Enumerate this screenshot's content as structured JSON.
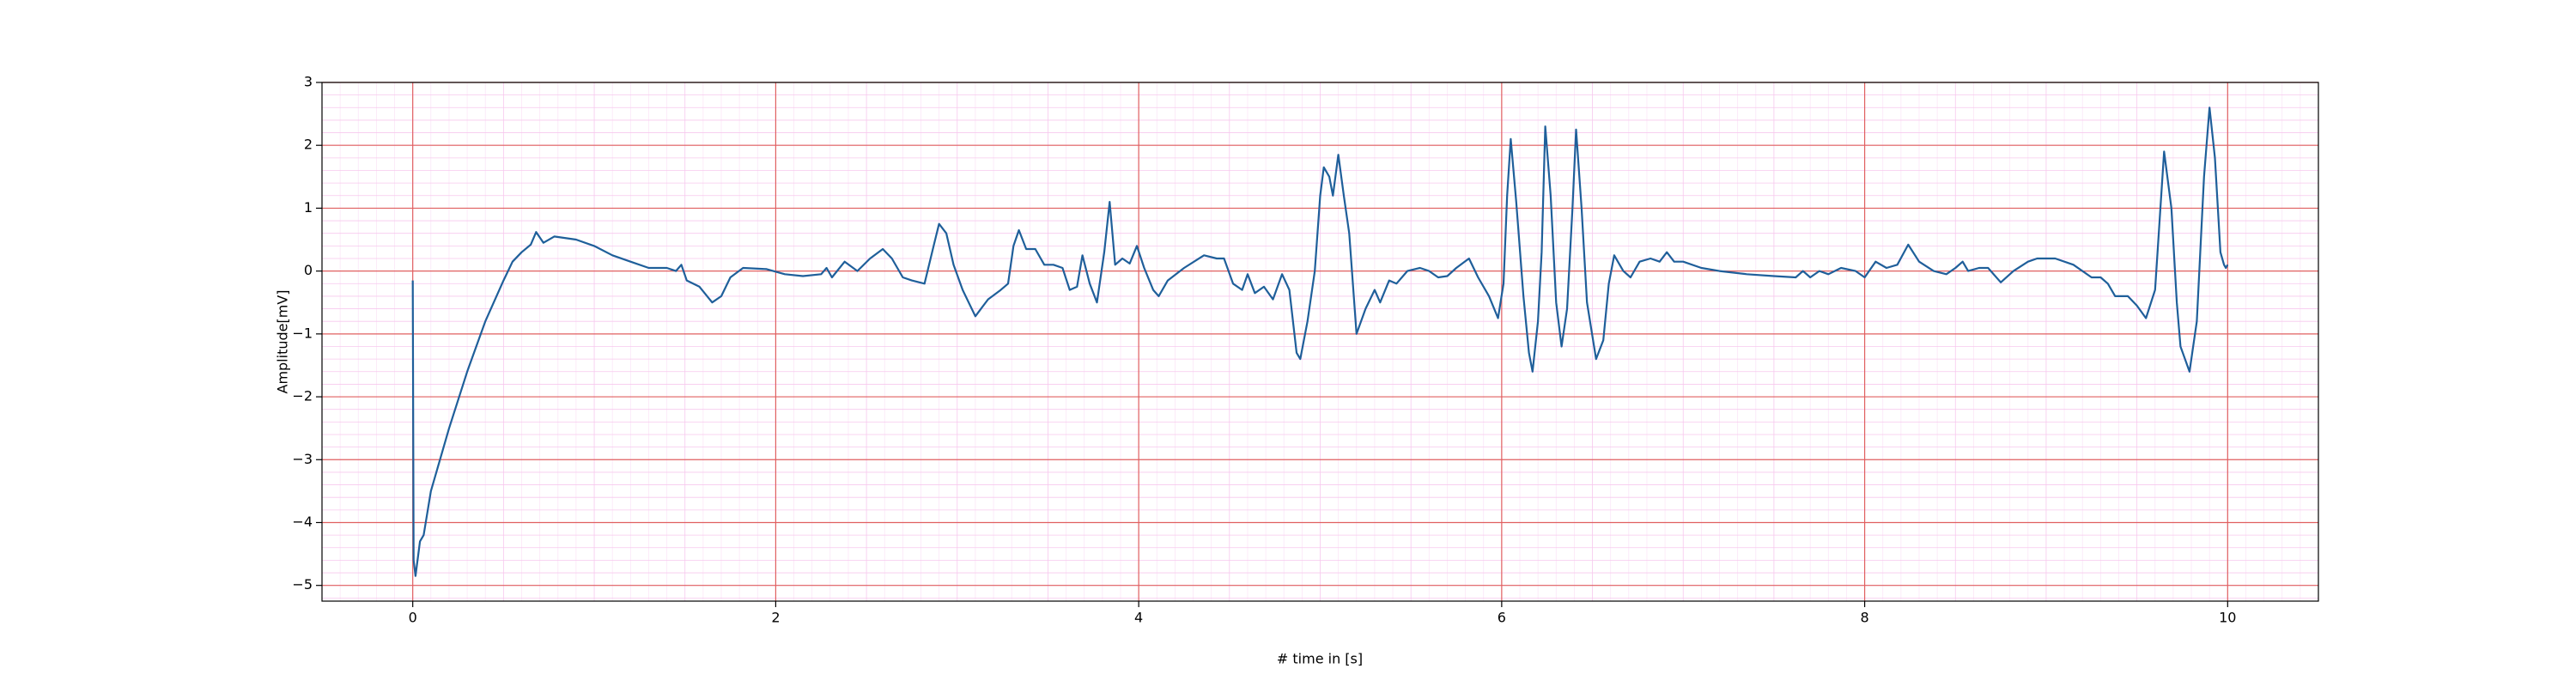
{
  "chart_data": {
    "type": "line",
    "xlabel": "# time in [s]",
    "ylabel": "Amplitude[mV]",
    "xlim": [
      -0.5,
      10.5
    ],
    "ylim": [
      -5.25,
      3.0
    ],
    "xticks": [
      0,
      2,
      4,
      6,
      8,
      10
    ],
    "yticks": [
      {
        "value": -5,
        "label": "−5"
      },
      {
        "value": -4,
        "label": "−4"
      },
      {
        "value": -3,
        "label": "−3"
      },
      {
        "value": -2,
        "label": "−2"
      },
      {
        "value": -1,
        "label": "−1"
      },
      0,
      1,
      2,
      3
    ],
    "grid": true,
    "grid_color": "#e06060",
    "minor_grid_color": "#f7c8ee",
    "series": [
      {
        "color": "#1f5f9a",
        "x": [
          0,
          0.005,
          0.015,
          0.04,
          0.06,
          0.1,
          0.2,
          0.3,
          0.4,
          0.5,
          0.55,
          0.6,
          0.65,
          0.68,
          0.72,
          0.78,
          0.9,
          1.0,
          1.1,
          1.2,
          1.3,
          1.4,
          1.45,
          1.48,
          1.51,
          1.58,
          1.65,
          1.7,
          1.75,
          1.82,
          1.95,
          2.05,
          2.15,
          2.25,
          2.28,
          2.31,
          2.38,
          2.45,
          2.52,
          2.59,
          2.64,
          2.7,
          2.75,
          2.82,
          2.87,
          2.9,
          2.94,
          2.98,
          3.03,
          3.1,
          3.17,
          3.24,
          3.28,
          3.31,
          3.34,
          3.38,
          3.43,
          3.48,
          3.53,
          3.58,
          3.62,
          3.66,
          3.69,
          3.73,
          3.77,
          3.81,
          3.84,
          3.87,
          3.91,
          3.95,
          3.99,
          4.03,
          4.08,
          4.11,
          4.16,
          4.25,
          4.36,
          4.43,
          4.47,
          4.52,
          4.57,
          4.6,
          4.64,
          4.69,
          4.74,
          4.79,
          4.83,
          4.87,
          4.89,
          4.93,
          4.97,
          5.0,
          5.02,
          5.05,
          5.07,
          5.1,
          5.13,
          5.16,
          5.2,
          5.25,
          5.3,
          5.33,
          5.38,
          5.42,
          5.48,
          5.55,
          5.6,
          5.65,
          5.7,
          5.75,
          5.82,
          5.87,
          5.93,
          5.98,
          6.01,
          6.03,
          6.05,
          6.08,
          6.12,
          6.15,
          6.17,
          6.2,
          6.22,
          6.24,
          6.27,
          6.3,
          6.33,
          6.36,
          6.39,
          6.41,
          6.44,
          6.47,
          6.52,
          6.56,
          6.59,
          6.62,
          6.67,
          6.71,
          6.76,
          6.82,
          6.87,
          6.91,
          6.95,
          7.0,
          7.1,
          7.2,
          7.35,
          7.5,
          7.62,
          7.66,
          7.7,
          7.75,
          7.8,
          7.87,
          7.95,
          8.0,
          8.06,
          8.12,
          8.18,
          8.24,
          8.3,
          8.38,
          8.45,
          8.5,
          8.54,
          8.57,
          8.63,
          8.68,
          8.75,
          8.82,
          8.9,
          8.95,
          9.05,
          9.15,
          9.25,
          9.3,
          9.34,
          9.38,
          9.45,
          9.5,
          9.55,
          9.6,
          9.65,
          9.69,
          9.72,
          9.74,
          9.79,
          9.83,
          9.87,
          9.9,
          9.93,
          9.96,
          9.98,
          9.99,
          10.0
        ],
        "values": [
          -0.15,
          -4.6,
          -4.85,
          -4.3,
          -4.2,
          -3.5,
          -2.5,
          -1.6,
          -0.8,
          -0.15,
          0.15,
          0.3,
          0.42,
          0.62,
          0.45,
          0.55,
          0.5,
          0.4,
          0.25,
          0.15,
          0.05,
          0.05,
          0.0,
          0.1,
          -0.15,
          -0.25,
          -0.5,
          -0.4,
          -0.1,
          0.05,
          0.03,
          -0.05,
          -0.08,
          -0.05,
          0.05,
          -0.1,
          0.15,
          0.0,
          0.2,
          0.35,
          0.2,
          -0.1,
          -0.15,
          -0.2,
          0.4,
          0.75,
          0.6,
          0.1,
          -0.3,
          -0.72,
          -0.45,
          -0.3,
          -0.2,
          0.4,
          0.65,
          0.35,
          0.35,
          0.1,
          0.1,
          0.05,
          -0.3,
          -0.25,
          0.25,
          -0.2,
          -0.5,
          0.3,
          1.1,
          0.1,
          0.2,
          0.12,
          0.4,
          0.05,
          -0.3,
          -0.4,
          -0.15,
          0.05,
          0.25,
          0.2,
          0.2,
          -0.2,
          -0.3,
          -0.05,
          -0.35,
          -0.25,
          -0.45,
          -0.05,
          -0.3,
          -1.3,
          -1.4,
          -0.8,
          0.0,
          1.2,
          1.65,
          1.5,
          1.2,
          1.85,
          1.2,
          0.6,
          -1.0,
          -0.6,
          -0.3,
          -0.5,
          -0.15,
          -0.2,
          0.0,
          0.05,
          0.0,
          -0.1,
          -0.08,
          0.05,
          0.2,
          -0.1,
          -0.4,
          -0.75,
          -0.2,
          1.2,
          2.1,
          1.1,
          -0.4,
          -1.3,
          -1.6,
          -0.8,
          0.3,
          2.3,
          1.2,
          -0.5,
          -1.2,
          -0.6,
          1.0,
          2.25,
          1.0,
          -0.5,
          -1.4,
          -1.1,
          -0.2,
          0.25,
          0.0,
          -0.1,
          0.15,
          0.2,
          0.15,
          0.3,
          0.15,
          0.15,
          0.05,
          0.0,
          -0.05,
          -0.08,
          -0.1,
          0.0,
          -0.1,
          0.0,
          -0.05,
          0.05,
          0.0,
          -0.1,
          0.15,
          0.05,
          0.1,
          0.42,
          0.15,
          0.0,
          -0.05,
          0.05,
          0.15,
          0.0,
          0.05,
          0.05,
          -0.18,
          0.0,
          0.15,
          0.2,
          0.2,
          0.1,
          -0.1,
          -0.1,
          -0.2,
          -0.4,
          -0.4,
          -0.55,
          -0.75,
          -0.3,
          1.9,
          1.0,
          -0.5,
          -1.2,
          -1.6,
          -0.8,
          1.5,
          2.6,
          1.8,
          0.3,
          0.1,
          0.05,
          0.1
        ]
      }
    ]
  }
}
